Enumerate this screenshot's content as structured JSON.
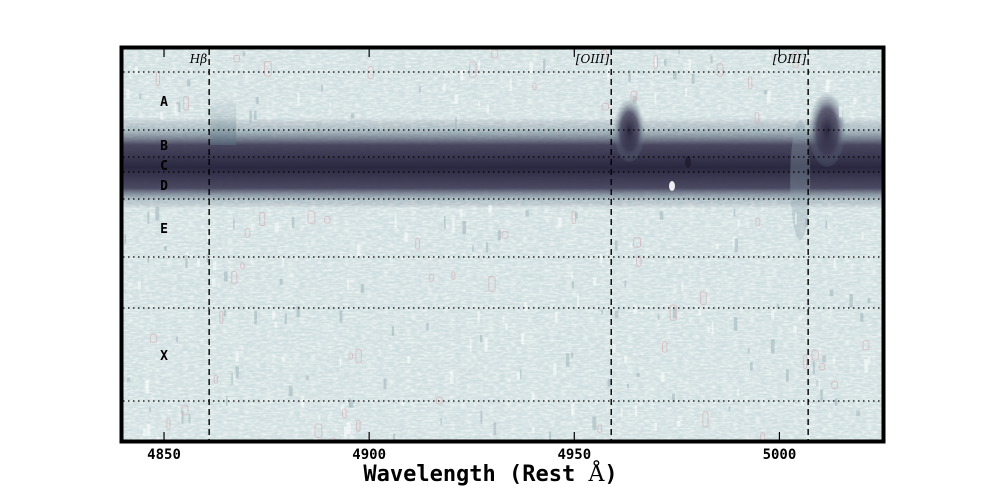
{
  "chart_data": {
    "type": "heatmap",
    "title": "",
    "xlabel_prefix": "Wavelength (Rest ",
    "xlabel_unit": "Å",
    "xlabel_suffix": ")",
    "xlabel": "Wavelength (Rest Å)",
    "ylabel": "",
    "xlim": [
      4840,
      5025
    ],
    "xticks": [
      4850,
      4900,
      4950,
      5000
    ],
    "grid": false,
    "colormap": "bone (light background, dark emission)",
    "emission_lines": [
      {
        "label": "Hβ",
        "wavelength": 4861
      },
      {
        "label": "[OIII]",
        "wavelength": 4959
      },
      {
        "label": "[OIII]",
        "wavelength": 5007
      }
    ],
    "regions": [
      {
        "label": "A"
      },
      {
        "label": "B"
      },
      {
        "label": "C"
      },
      {
        "label": "D"
      },
      {
        "label": "E"
      },
      {
        "label": "X"
      }
    ]
  },
  "colors": {
    "background": "#dfe9e9",
    "continuum": "#2f2b45",
    "frame": "#000000"
  }
}
